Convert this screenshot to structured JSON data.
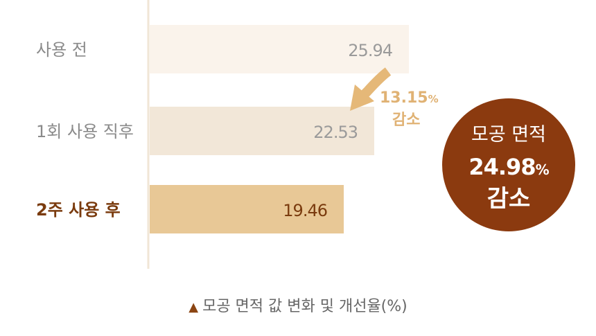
{
  "chart_data": {
    "type": "bar",
    "orientation": "horizontal",
    "categories": [
      "사용 전",
      "1회 사용 직후",
      "2주 사용 후"
    ],
    "values": [
      25.94,
      22.53,
      19.46
    ],
    "value_labels": [
      "25.94",
      "22.53",
      "19.46"
    ],
    "highlight_index": 2,
    "title": "",
    "xlabel": "",
    "ylabel": "",
    "xlim": [
      0,
      32
    ],
    "grid": false,
    "colors": [
      "#faf3eb",
      "#f2e7d8",
      "#e8c896"
    ],
    "annotations": {
      "reduction_1": {
        "percent": "13.15",
        "unit": "%",
        "text": "감소"
      },
      "badge": {
        "line1": "모공 면적",
        "percent": "24.98",
        "unit": "%",
        "text": "감소",
        "color": "#8b3a0f"
      }
    },
    "caption": {
      "marker": "▲",
      "text": "모공 면적 값 변화 및 개선율(%)"
    }
  }
}
